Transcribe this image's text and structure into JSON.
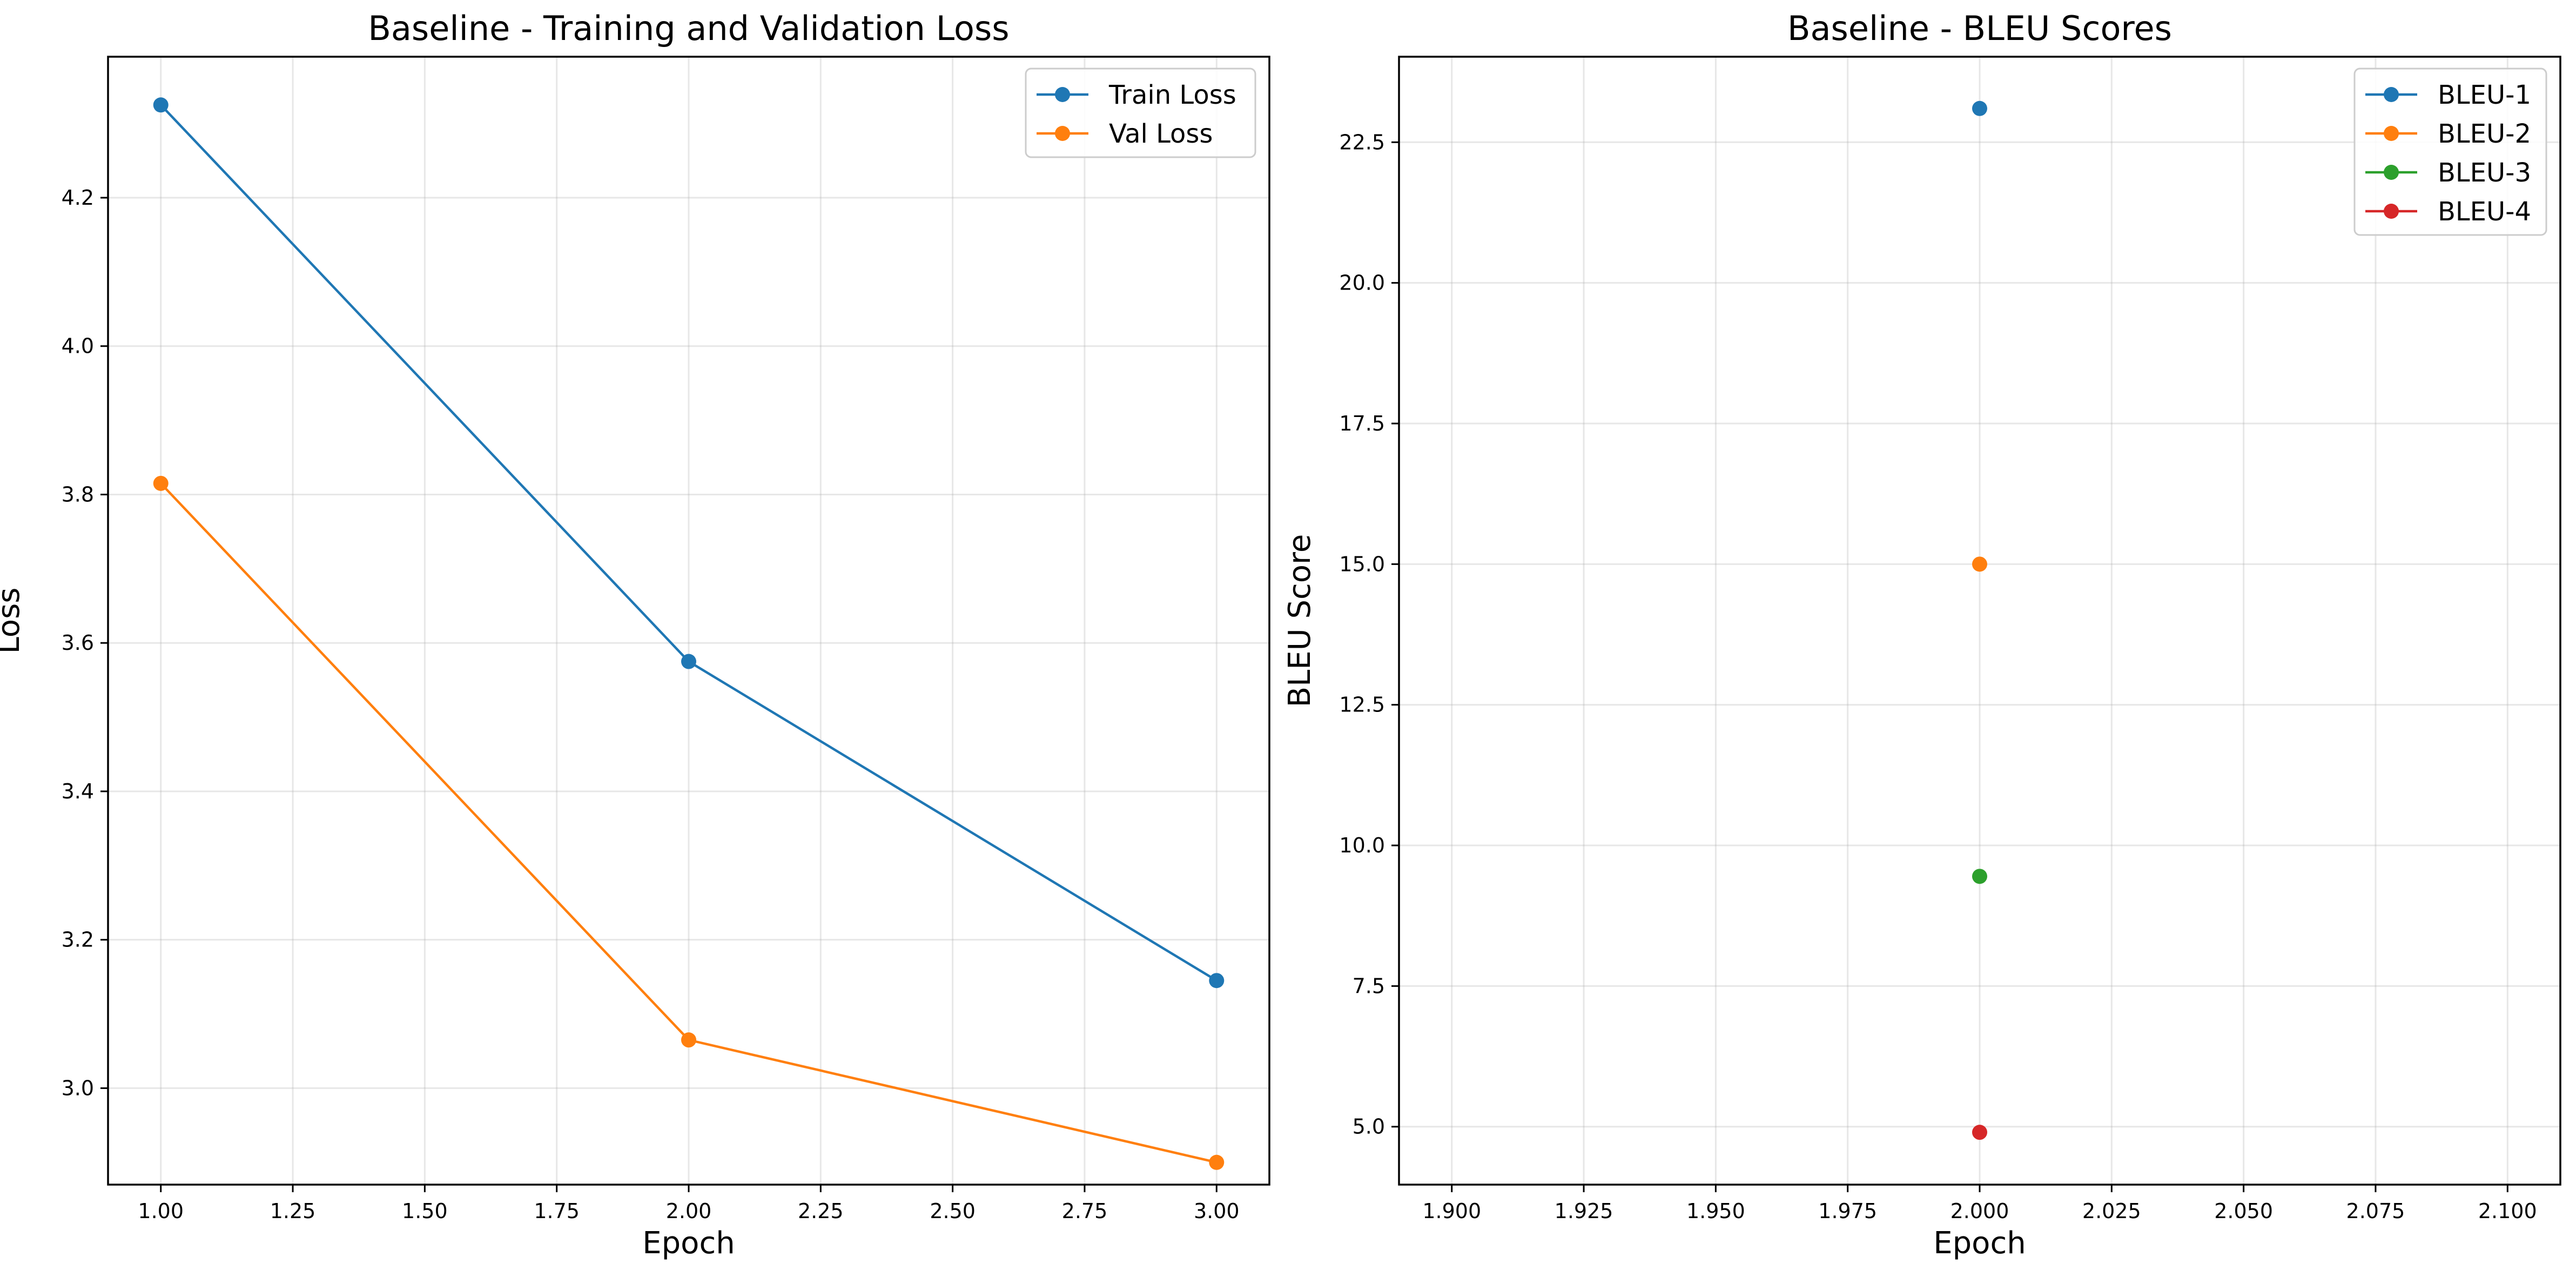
{
  "chart_data": [
    {
      "type": "line",
      "title": "Baseline - Training and Validation Loss",
      "xlabel": "Epoch",
      "ylabel": "Loss",
      "x": [
        1,
        2,
        3
      ],
      "xlim": [
        0.9,
        3.1
      ],
      "ylim": [
        2.87,
        4.39
      ],
      "xticks": [
        "1.00",
        "1.25",
        "1.50",
        "1.75",
        "2.00",
        "2.25",
        "2.50",
        "2.75",
        "3.00"
      ],
      "yticks": [
        "3.0",
        "3.2",
        "3.4",
        "3.6",
        "3.8",
        "4.0",
        "4.2"
      ],
      "grid": true,
      "legend_position": "top-right",
      "series": [
        {
          "name": "Train Loss",
          "color": "#1f77b4",
          "marker": "circle",
          "values": [
            4.325,
            3.575,
            3.145
          ]
        },
        {
          "name": "Val Loss",
          "color": "#ff7f0e",
          "marker": "circle",
          "values": [
            3.815,
            3.065,
            2.9
          ]
        }
      ]
    },
    {
      "type": "scatter",
      "title": "Baseline - BLEU Scores",
      "xlabel": "Epoch",
      "ylabel": "BLEU Score",
      "x": [
        2
      ],
      "xlim": [
        1.89,
        2.11
      ],
      "ylim": [
        3.97,
        24.02
      ],
      "xticks": [
        "1.900",
        "1.925",
        "1.950",
        "1.975",
        "2.000",
        "2.025",
        "2.050",
        "2.075",
        "2.100"
      ],
      "yticks": [
        "5.0",
        "7.5",
        "10.0",
        "12.5",
        "15.0",
        "17.5",
        "20.0",
        "22.5"
      ],
      "grid": true,
      "legend_position": "top-right",
      "series": [
        {
          "name": "BLEU-1",
          "color": "#1f77b4",
          "marker": "circle",
          "values": [
            23.1
          ]
        },
        {
          "name": "BLEU-2",
          "color": "#ff7f0e",
          "marker": "circle",
          "values": [
            15.0
          ]
        },
        {
          "name": "BLEU-3",
          "color": "#2ca02c",
          "marker": "circle",
          "values": [
            9.45
          ]
        },
        {
          "name": "BLEU-4",
          "color": "#d62728",
          "marker": "circle",
          "values": [
            4.9
          ]
        }
      ]
    }
  ]
}
